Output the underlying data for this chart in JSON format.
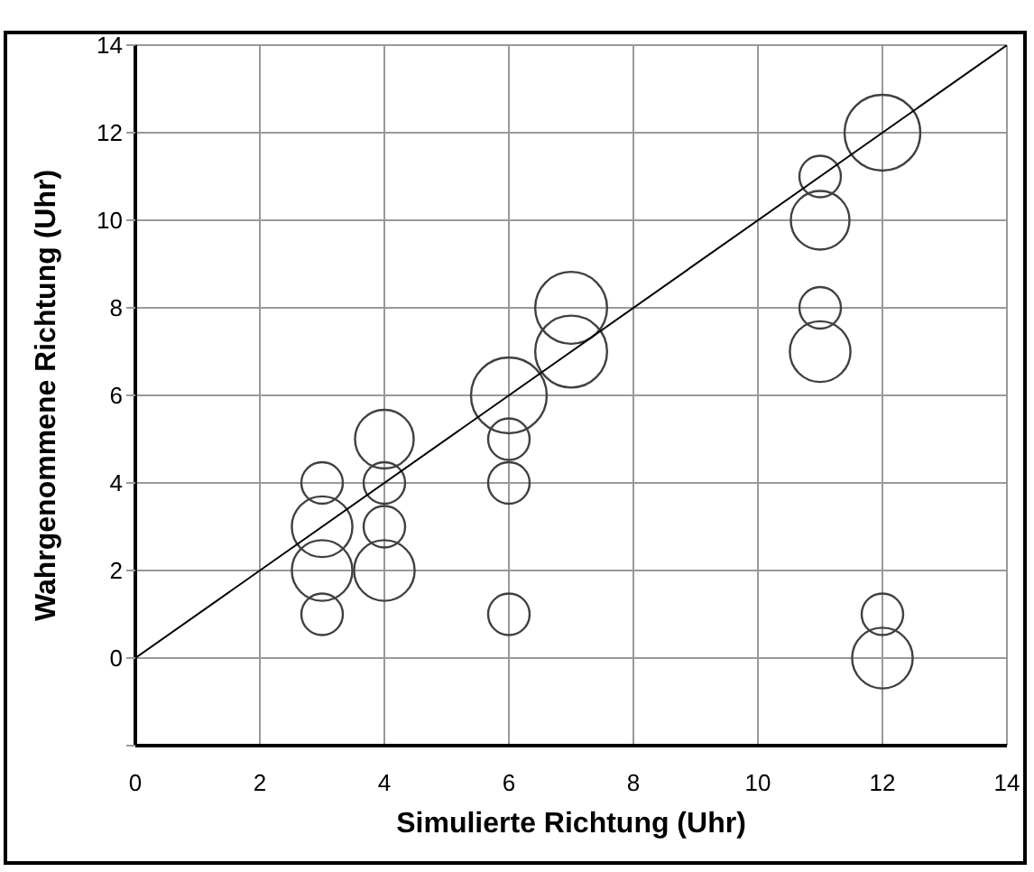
{
  "chart_data": {
    "type": "bubble",
    "xlabel": "Simulierte Richtung (Uhr)",
    "ylabel": "Wahrgenommene Richtung (Uhr)",
    "xlim": [
      0,
      14
    ],
    "xticks": [
      0,
      2,
      4,
      6,
      8,
      10,
      12,
      14
    ],
    "ylim": [
      -2,
      14
    ],
    "yticks": [
      {
        "value": -2,
        "label": null
      },
      0,
      2,
      4,
      6,
      8,
      10,
      12,
      14
    ],
    "grid": true,
    "legend": false,
    "series": [
      {
        "color": "#404040",
        "x": [
          3,
          3,
          3,
          3,
          4,
          4,
          4,
          4,
          6,
          6,
          6,
          6,
          7,
          7,
          11,
          11,
          11,
          11,
          12,
          12,
          12
        ],
        "values": [
          4,
          3,
          2,
          1,
          5,
          4,
          3,
          2,
          6,
          5,
          4,
          1,
          8,
          7,
          11,
          10,
          8,
          7,
          12,
          1,
          0
        ],
        "sizes": [
          0.3,
          0.64,
          0.64,
          0.3,
          0.6,
          0.3,
          0.3,
          0.64,
          1,
          0.3,
          0.3,
          0.3,
          0.9,
          0.9,
          0.3,
          0.6,
          0.3,
          0.64,
          1,
          0.3,
          0.64
        ]
      },
      {
        "type": "line",
        "color": "#000000",
        "x": [
          0,
          14
        ],
        "values": [
          0,
          14
        ]
      }
    ]
  }
}
